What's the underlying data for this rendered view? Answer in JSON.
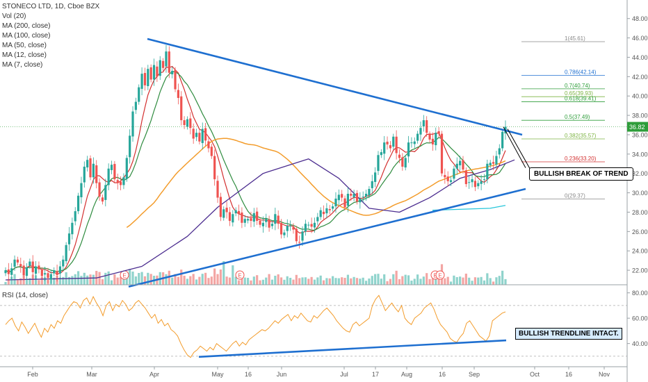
{
  "legend": {
    "title": "STONECO LTD, 1D, Cboe BZX",
    "lines": [
      "Vol (20)",
      "MA (200, close)",
      "MA (100, close)",
      "MA (50, close)",
      "MA (12, close)",
      "MA (7, close)"
    ]
  },
  "rsi_label": "RSI (14, close)",
  "annotations": {
    "break": "BULLISH BREAK OF TREND",
    "trendline": "BULLISH TRENDLINE INTACT."
  },
  "colors": {
    "up": "#26a69a",
    "down": "#ef5350",
    "vol_up": "#8fd3cc",
    "vol_down": "#f3a5a3",
    "ma200": "#4b2c8f",
    "ma100": "#f39c2b",
    "ma50": "#2e8b3e",
    "ma7": "#d32f2f",
    "trend": "#1e6fd0",
    "rsi": "#f39c2b",
    "aux": "#26c6da"
  },
  "chart_data": [
    {
      "type": "candlestick",
      "title": "STONECO LTD, 1D, Cboe BZX",
      "x_ticks": [
        "Feb",
        "Mar",
        "Apr",
        "May",
        "16",
        "Jun",
        "Jul",
        "17",
        "Aug",
        "16",
        "Sep",
        "Oct",
        "16",
        "Nov"
      ],
      "y_ticks": [
        22.0,
        24.0,
        26.0,
        28.0,
        30.0,
        32.0,
        34.0,
        36.0,
        38.0,
        40.0,
        42.0,
        44.0,
        46.0,
        48.0
      ],
      "ylim": [
        20.5,
        49.2
      ],
      "last_price": 36.82,
      "fib_levels": [
        {
          "ratio": "1",
          "price": 45.61,
          "color": "#888888"
        },
        {
          "ratio": "0.786",
          "price": 42.14,
          "color": "#1e6fd0"
        },
        {
          "ratio": "0.7",
          "price": 40.74,
          "color": "#2e9d3a"
        },
        {
          "ratio": "0.65",
          "price": 39.93,
          "color": "#7cb342"
        },
        {
          "ratio": "0.618",
          "price": 39.41,
          "color": "#2e9d3a"
        },
        {
          "ratio": "0.5",
          "price": 37.49,
          "color": "#2e9d3a"
        },
        {
          "ratio": "0.382",
          "price": 35.57,
          "color": "#7cb342"
        },
        {
          "ratio": "0.236",
          "price": 33.2,
          "color": "#d32f2f"
        },
        {
          "ratio": "0",
          "price": 29.37,
          "color": "#888888"
        }
      ],
      "close_series": [
        22,
        21.6,
        22.2,
        23.1,
        22.8,
        22.4,
        21.5,
        22.3,
        22.9,
        21.8,
        22.4,
        22.1,
        21.4,
        21.7,
        21.2,
        21.6,
        22.0,
        21.5,
        22.4,
        23.1,
        24.6,
        25.8,
        26.9,
        28.1,
        29.7,
        31.0,
        32.7,
        33.4,
        31.6,
        33.0,
        31.0,
        29.6,
        29.1,
        30.8,
        32.5,
        32.9,
        31.4,
        31.0,
        30.8,
        31.6,
        33.6,
        35.9,
        38.4,
        39.4,
        40.9,
        42.3,
        41.1,
        42.8,
        41.7,
        43.2,
        42.0,
        43.7,
        42.9,
        44.6,
        42.4,
        42.6,
        40.7,
        39.8,
        37.5,
        37.0,
        37.6,
        36.7,
        35.6,
        36.2,
        35.3,
        36.6,
        35.4,
        34.6,
        33.8,
        31.4,
        29.5,
        27.5,
        28.3,
        28.0,
        27.1,
        27.8,
        28.2,
        27.8,
        26.9,
        27.3,
        27.3,
        27.1,
        27.9,
        27.1,
        26.7,
        26.9,
        27.3,
        26.4,
        26.8,
        27.8,
        26.8,
        25.7,
        25.9,
        26.6,
        26.6,
        26.2,
        25.0,
        24.9,
        26.0,
        26.8,
        26.7,
        26.5,
        26.9,
        27.5,
        28.2,
        27.8,
        28.4,
        28.2,
        28.6,
        29.4,
        29.8,
        29.5,
        28.5,
        29.9,
        29.7,
        29.9,
        29.1,
        29.4,
        29.6,
        29.9,
        30.4,
        31.2,
        32.1,
        33.9,
        34.2,
        35.2,
        35.0,
        34.6,
        35.8,
        34.1,
        33.6,
        32.7,
        33.6,
        35.2,
        35.2,
        35.3,
        36.1,
        36.7,
        37.5,
        36.2,
        35.5,
        35.0,
        36.2,
        36.1,
        32.0,
        31.6,
        31.2,
        31.3,
        32.5,
        33.0,
        33.3,
        32.4,
        30.9,
        31.1,
        31.4,
        30.6,
        31.0,
        31.2,
        31.4,
        33.0,
        33.1,
        33.0,
        33.8,
        34.6,
        36.3,
        36.82
      ],
      "ma200_trend_points": [
        [
          0,
          21.0
        ],
        [
          30,
          21.2
        ],
        [
          45,
          22.4
        ],
        [
          60,
          25.5
        ],
        [
          70,
          28.5
        ],
        [
          85,
          32.0
        ],
        [
          100,
          33.5
        ],
        [
          110,
          31.5
        ],
        [
          120,
          28.4
        ],
        [
          130,
          28.0
        ],
        [
          140,
          29.5
        ],
        [
          150,
          31.5
        ],
        [
          160,
          32.4
        ],
        [
          168,
          33.4
        ]
      ],
      "trendline_upper": [
        [
          45.9,
          0.0
        ],
        [
          36.1,
          168.0
        ]
      ],
      "trendline_lower": [
        [
          20.2,
          30.0
        ],
        [
          30.4,
          178.0
        ]
      ]
    },
    {
      "type": "line",
      "title": "RSI (14, close)",
      "y_ticks": [
        40.0,
        60.0,
        80.0
      ],
      "ylim": [
        25,
        82
      ],
      "bands": [
        30,
        70
      ],
      "values": [
        55,
        58,
        60,
        54,
        50,
        57,
        53,
        48,
        52,
        56,
        50,
        45,
        52,
        49,
        55,
        52,
        58,
        56,
        62,
        66,
        70,
        73,
        72,
        68,
        74,
        76,
        71,
        77,
        72,
        68,
        62,
        70,
        73,
        66,
        71,
        69,
        74,
        71,
        66,
        68,
        72,
        74,
        71,
        68,
        64,
        60,
        63,
        56,
        59,
        54,
        56,
        51,
        49,
        46,
        40,
        35,
        31,
        29,
        33,
        35,
        38,
        36,
        34,
        37,
        35,
        40,
        38,
        36,
        34,
        37,
        40,
        42,
        38,
        41,
        39,
        43,
        45,
        47,
        49,
        51,
        50,
        52,
        55,
        58,
        56,
        59,
        61,
        63,
        58,
        62,
        60,
        64,
        61,
        58,
        57,
        62,
        60,
        63,
        66,
        68,
        65,
        62,
        58,
        55,
        52,
        50,
        49,
        55,
        57,
        54,
        56,
        58,
        60,
        70,
        75,
        78,
        72,
        66,
        69,
        72,
        68,
        65,
        70,
        60,
        57,
        55,
        60,
        62,
        64,
        68,
        70,
        72,
        67,
        60,
        55,
        52,
        49,
        44,
        42,
        41,
        45,
        48,
        56,
        58,
        54,
        50,
        46,
        44,
        42,
        46,
        58,
        60,
        62,
        64,
        65
      ],
      "trendline": [
        [
          29.5,
          0
        ],
        [
          42.5,
          1
        ]
      ]
    }
  ]
}
